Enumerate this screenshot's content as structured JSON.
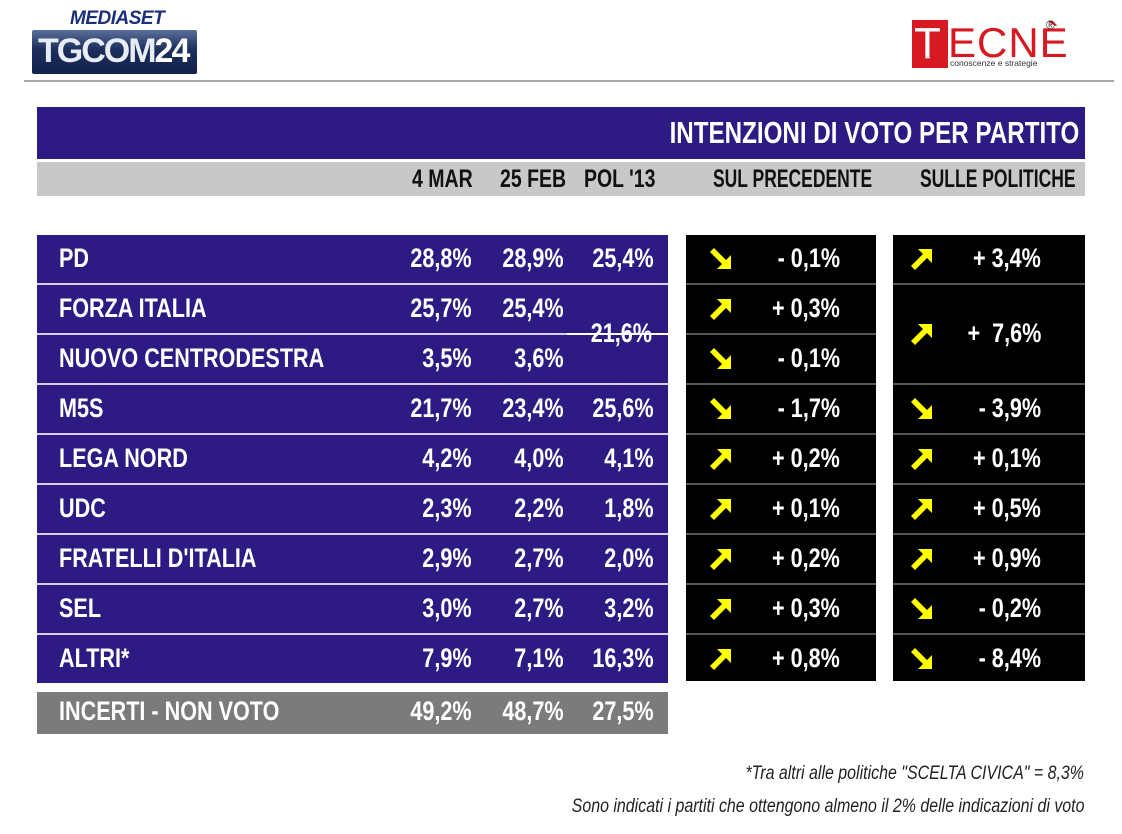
{
  "header": {
    "brand_top": "MEDIASET",
    "brand_main": "TGCOM",
    "brand_num": "24",
    "pollster_first": "T",
    "pollster_rest": "ECNÈ",
    "pollster_reg": "®",
    "pollster_tagline": "conoscenze e strategie"
  },
  "colors": {
    "title_bg": "#2e1a83",
    "column_header_bg": "#c8c8c8",
    "row_bg": "#2e1a83",
    "incerti_bg": "#7b7b7b",
    "change_bg": "#000000",
    "arrow": "#ffff00",
    "brand_red": "#d71921"
  },
  "chart_data": {
    "type": "table",
    "title": "INTENZIONI DI VOTO PER PARTITO",
    "columns": [
      "4 MAR",
      "25 FEB",
      "POL '13",
      "SUL PRECEDENTE",
      "SULLE POLITICHE"
    ],
    "rows": [
      {
        "party": "PD",
        "mar4": "28,8%",
        "feb25": "28,9%",
        "pol13": "25,4%",
        "sul_precedente": "- 0,1%",
        "trend_prec": "down",
        "sulle_politiche": "+ 3,4%",
        "trend_pol": "up"
      },
      {
        "party": "FORZA ITALIA",
        "mar4": "25,7%",
        "feb25": "25,4%",
        "pol13": "21,6%",
        "sul_precedente": "+ 0,3%",
        "trend_prec": "up",
        "sulle_politiche": "+  7,6%",
        "trend_pol": "up"
      },
      {
        "party": "NUOVO CENTRODESTRA",
        "mar4": "3,5%",
        "feb25": "3,6%",
        "pol13": "21,6%",
        "sul_precedente": "- 0,1%",
        "trend_prec": "down",
        "sulle_politiche": "+  7,6%",
        "trend_pol": "up"
      },
      {
        "party": "M5S",
        "mar4": "21,7%",
        "feb25": "23,4%",
        "pol13": "25,6%",
        "sul_precedente": "- 1,7%",
        "trend_prec": "down",
        "sulle_politiche": "- 3,9%",
        "trend_pol": "down"
      },
      {
        "party": "LEGA NORD",
        "mar4": "4,2%",
        "feb25": "4,0%",
        "pol13": "4,1%",
        "sul_precedente": "+ 0,2%",
        "trend_prec": "up",
        "sulle_politiche": "+ 0,1%",
        "trend_pol": "up"
      },
      {
        "party": "UDC",
        "mar4": "2,3%",
        "feb25": "2,2%",
        "pol13": "1,8%",
        "sul_precedente": "+ 0,1%",
        "trend_prec": "up",
        "sulle_politiche": "+ 0,5%",
        "trend_pol": "up"
      },
      {
        "party": "FRATELLI D'ITALIA",
        "mar4": "2,9%",
        "feb25": "2,7%",
        "pol13": "2,0%",
        "sul_precedente": "+ 0,2%",
        "trend_prec": "up",
        "sulle_politiche": "+ 0,9%",
        "trend_pol": "up"
      },
      {
        "party": "SEL",
        "mar4": "3,0%",
        "feb25": "2,7%",
        "pol13": "3,2%",
        "sul_precedente": "+ 0,3%",
        "trend_prec": "up",
        "sulle_politiche": "- 0,2%",
        "trend_pol": "down"
      },
      {
        "party": "ALTRI*",
        "mar4": "7,9%",
        "feb25": "7,1%",
        "pol13": "16,3%",
        "sul_precedente": "+ 0,8%",
        "trend_prec": "up",
        "sulle_politiche": "- 8,4%",
        "trend_pol": "down"
      }
    ],
    "merged": {
      "pol13_forza_ncd": "21,6%",
      "sulle_politiche_forza_ncd": "+  7,6%"
    },
    "incerti": {
      "party": "INCERTI - NON VOTO",
      "mar4": "49,2%",
      "feb25": "48,7%",
      "pol13": "27,5%"
    }
  },
  "notes": {
    "altri": "*Tra altri alle politiche \"SCELTA CIVICA\" = 8,3%",
    "threshold": "Sono indicati i partiti che ottengono almeno il 2% delle indicazioni di voto"
  }
}
